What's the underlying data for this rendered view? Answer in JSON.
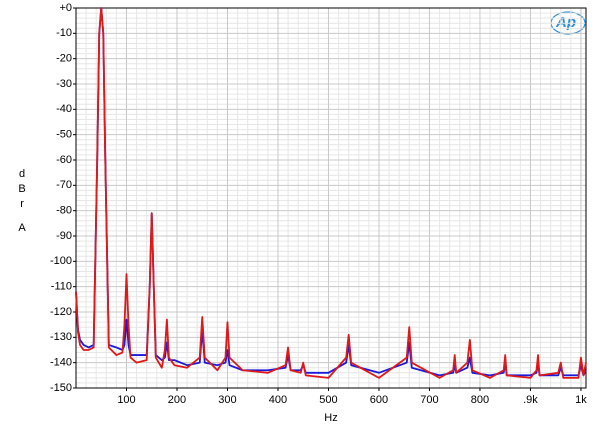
{
  "chart_data": {
    "type": "line",
    "y_label": "dBr",
    "y_label_unit": "A",
    "x_label": "Hz",
    "logo_text": "Ap",
    "x": [
      0,
      4,
      8,
      15,
      25,
      35,
      42,
      46,
      50,
      54,
      58,
      65,
      80,
      92,
      96,
      100,
      104,
      108,
      120,
      140,
      146,
      150,
      154,
      158,
      170,
      176,
      180,
      184,
      195,
      220,
      245,
      250,
      255,
      280,
      296,
      300,
      304,
      330,
      380,
      415,
      420,
      425,
      445,
      450,
      455,
      500,
      535,
      540,
      545,
      600,
      655,
      660,
      665,
      720,
      747,
      750,
      753,
      775,
      780,
      785,
      820,
      847,
      850,
      853,
      900,
      912,
      915,
      918,
      955,
      960,
      965,
      995,
      1000,
      1005,
      1010
    ],
    "series": [
      {
        "color": "#1a1adc",
        "values": [
          -112,
          -127,
          -131,
          -133,
          -134,
          -133,
          -60,
          -10,
          0,
          -10,
          -60,
          -133,
          -134,
          -135,
          -133,
          -123,
          -133,
          -137,
          -137,
          -137,
          -110,
          -81,
          -110,
          -137,
          -139,
          -138,
          -132,
          -139,
          -139,
          -141,
          -140,
          -127,
          -140,
          -141,
          -140,
          -135,
          -141,
          -143,
          -143,
          -142,
          -137,
          -143,
          -143,
          -141,
          -144,
          -144,
          -140,
          -133,
          -141,
          -144,
          -140,
          -132,
          -142,
          -145,
          -144,
          -141,
          -144,
          -142,
          -138,
          -144,
          -145,
          -144,
          -140,
          -145,
          -145,
          -144,
          -140,
          -145,
          -145,
          -142,
          -145,
          -145,
          -141,
          -145,
          -143
        ]
      },
      {
        "color": "#e01818",
        "values": [
          -112,
          -128,
          -133,
          -135,
          -135,
          -134,
          -60,
          -10,
          0,
          -10,
          -60,
          -134,
          -137,
          -136,
          -125,
          -105,
          -125,
          -138,
          -140,
          -139,
          -110,
          -81,
          -110,
          -138,
          -142,
          -135,
          -123,
          -138,
          -141,
          -142,
          -138,
          -122,
          -138,
          -143,
          -138,
          -124,
          -138,
          -143,
          -144,
          -141,
          -134,
          -143,
          -144,
          -140,
          -145,
          -146,
          -138,
          -129,
          -140,
          -146,
          -138,
          -126,
          -140,
          -146,
          -143,
          -137,
          -144,
          -140,
          -131,
          -143,
          -146,
          -143,
          -137,
          -145,
          -146,
          -143,
          -137,
          -145,
          -144,
          -140,
          -146,
          -146,
          -138,
          -145,
          -140
        ]
      }
    ],
    "xlim": [
      0,
      1010
    ],
    "ylim": [
      -150,
      0
    ],
    "xticks": [
      100,
      200,
      300,
      400,
      500,
      600,
      700,
      800,
      {
        "value": 900,
        "label": ".9k"
      },
      {
        "value": 1000,
        "label": "1k"
      }
    ],
    "yticks": [
      {
        "value": 0,
        "label": "+0"
      },
      -10,
      -20,
      -30,
      -40,
      -50,
      -60,
      -70,
      -80,
      -90,
      -100,
      -110,
      -120,
      -130,
      -140,
      -150
    ],
    "grid": true
  }
}
